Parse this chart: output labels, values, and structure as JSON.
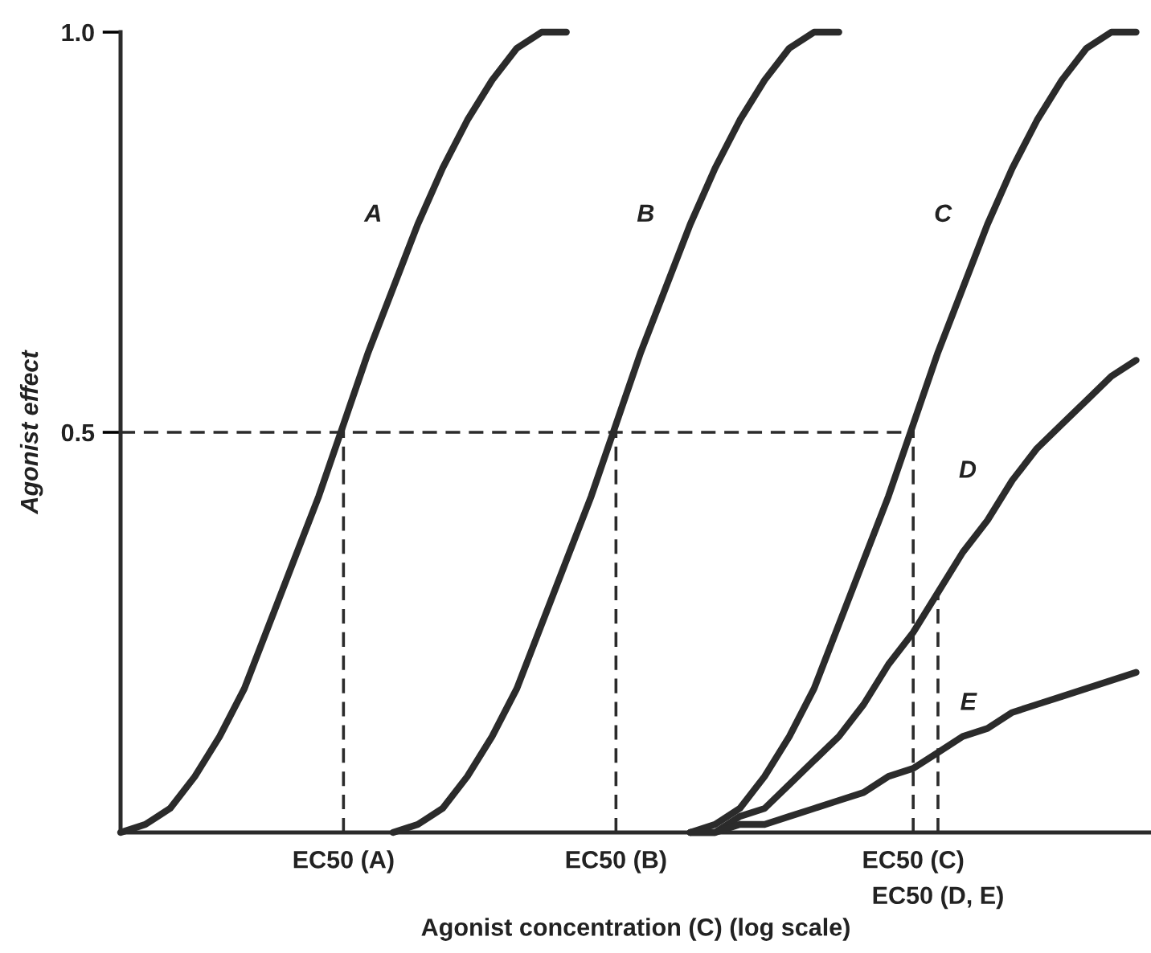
{
  "chart_data": {
    "type": "line",
    "xlabel": "Agonist concentration (C) (log scale)",
    "ylabel": "Agonist effect",
    "categories": [
      null,
      null,
      null,
      null,
      null,
      null,
      null,
      null,
      null,
      "EC50 (A)",
      null,
      null,
      null,
      null,
      null,
      null,
      null,
      null,
      null,
      null,
      "EC50 (B)",
      null,
      null,
      null,
      null,
      null,
      null,
      null,
      null,
      null,
      null,
      null,
      "EC50 (C)",
      "EC50 (D, E)",
      null,
      null,
      null,
      null,
      null,
      null,
      null,
      null
    ],
    "series": [
      {
        "name": "A",
        "color": "#2b2b2b",
        "values": [
          0,
          0.01,
          0.03,
          0.07,
          0.12,
          0.18,
          0.26,
          0.34,
          0.42,
          0.51,
          0.6,
          0.68,
          0.76,
          0.83,
          0.89,
          0.94,
          0.98,
          1.0,
          1.0,
          null,
          null,
          null,
          null,
          null,
          null,
          null,
          null,
          null,
          null,
          null,
          null,
          null,
          null,
          null,
          null,
          null,
          null,
          null,
          null,
          null,
          null,
          null
        ]
      },
      {
        "name": "B",
        "color": "#2b2b2b",
        "values": [
          null,
          null,
          null,
          null,
          null,
          null,
          null,
          null,
          null,
          null,
          null,
          0,
          0.01,
          0.03,
          0.07,
          0.12,
          0.18,
          0.26,
          0.34,
          0.42,
          0.51,
          0.6,
          0.68,
          0.76,
          0.83,
          0.89,
          0.94,
          0.98,
          1.0,
          1.0,
          null,
          null,
          null,
          null,
          null,
          null,
          null,
          null,
          null,
          null,
          null,
          null
        ]
      },
      {
        "name": "C",
        "color": "#2b2b2b",
        "values": [
          null,
          null,
          null,
          null,
          null,
          null,
          null,
          null,
          null,
          null,
          null,
          null,
          null,
          null,
          null,
          null,
          null,
          null,
          null,
          null,
          null,
          null,
          null,
          0,
          0.01,
          0.03,
          0.07,
          0.12,
          0.18,
          0.26,
          0.34,
          0.42,
          0.51,
          0.6,
          0.68,
          0.76,
          0.83,
          0.89,
          0.94,
          0.98,
          1.0,
          1.0
        ]
      },
      {
        "name": "D",
        "color": "#2b2b2b",
        "values": [
          null,
          null,
          null,
          null,
          null,
          null,
          null,
          null,
          null,
          null,
          null,
          null,
          null,
          null,
          null,
          null,
          null,
          null,
          null,
          null,
          null,
          null,
          null,
          0,
          0,
          0.02,
          0.03,
          0.06,
          0.09,
          0.12,
          0.16,
          0.21,
          0.25,
          0.3,
          0.35,
          0.39,
          0.44,
          0.48,
          0.51,
          0.54,
          0.57,
          0.59
        ]
      },
      {
        "name": "E",
        "color": "#2b2b2b",
        "values": [
          null,
          null,
          null,
          null,
          null,
          null,
          null,
          null,
          null,
          null,
          null,
          null,
          null,
          null,
          null,
          null,
          null,
          null,
          null,
          null,
          null,
          null,
          null,
          0,
          0,
          0.01,
          0.01,
          0.02,
          0.03,
          0.04,
          0.05,
          0.07,
          0.08,
          0.1,
          0.12,
          0.13,
          0.15,
          0.16,
          0.17,
          0.18,
          0.19,
          0.2
        ]
      }
    ],
    "ylim": [
      0,
      1
    ],
    "yticks": [
      {
        "value": 0.5,
        "label": "0.5"
      },
      {
        "value": 1,
        "label": "1.0"
      }
    ],
    "ref_lines": [
      {
        "axis": "y",
        "value": 0.5,
        "color": "#2b2b2b",
        "line_style": "dashed"
      },
      {
        "axis": "x",
        "value": "EC50 (A)",
        "color": "#2b2b2b",
        "line_style": "dashed"
      },
      {
        "axis": "x",
        "value": "EC50 (B)",
        "color": "#2b2b2b",
        "line_style": "dashed"
      },
      {
        "axis": "x",
        "value": "EC50 (C)",
        "color": "#2b2b2b",
        "line_style": "dashed"
      },
      {
        "axis": "x",
        "value": "EC50 (D, E)",
        "color": "#2b2b2b",
        "line_style": "dashed"
      }
    ],
    "grid": false,
    "legend": false,
    "marker": "none",
    "line_style": "solid"
  }
}
